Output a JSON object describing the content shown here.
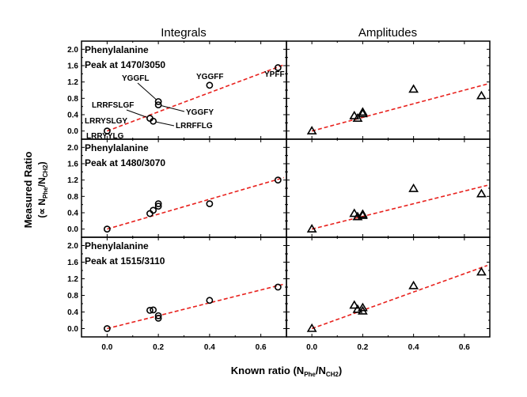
{
  "chart_data": {
    "type": "scatter",
    "layout": "3x2 grid of panels",
    "column_titles": [
      "Integrals",
      "Amplitudes"
    ],
    "xlabel": "Known ratio (N_Phe/N_CH2)",
    "xlabel_parts": {
      "main": "Known ratio (N",
      "sub1": "Phe",
      "mid": "/N",
      "sub2": "CH2",
      "end": ")"
    },
    "ylabel": "Measured Ratio (∝ N_Phe/N_CH2)",
    "ylabel_parts": {
      "line1": "Measured Ratio",
      "prefix": "(∝ N",
      "sub1": "Phe",
      "mid": "/N",
      "sub2": "CH2",
      "end": ")"
    },
    "xlim": [
      -0.1,
      0.7
    ],
    "ylim": [
      -0.2,
      2.2
    ],
    "xticks": [
      0.0,
      0.2,
      0.4,
      0.6
    ],
    "xtick_labels": [
      "0.0",
      "0.2",
      "0.4",
      "0.6"
    ],
    "yticks": [
      0.0,
      0.4,
      0.8,
      1.2,
      1.6,
      2.0
    ],
    "ytick_labels": [
      "0.0",
      "0.4",
      "0.8",
      "1.2",
      "1.6",
      "2.0"
    ],
    "marker_colors": {
      "points": "#000000",
      "fit": "#e8211d"
    },
    "panels": [
      {
        "row": 0,
        "col": 0,
        "marker": "circle",
        "title_lines": [
          "Phenylalanine",
          "Peak at 1470/3050"
        ],
        "points": [
          {
            "x": 0.0,
            "y": 0.0,
            "label": "LRRYYLG"
          },
          {
            "x": 0.167,
            "y": 0.31,
            "label": "LRRFSLGF"
          },
          {
            "x": 0.18,
            "y": 0.24,
            "label": "LRRFFLG"
          },
          {
            "x": 0.2,
            "y": 0.72,
            "label": "YGGFL"
          },
          {
            "x": 0.2,
            "y": 0.64,
            "label": "YGGFY"
          },
          {
            "x": 0.4,
            "y": 1.12,
            "label": "YGGFF"
          },
          {
            "x": 0.667,
            "y": 1.55,
            "label": "YPFF"
          }
        ],
        "extra_labels": [
          "LRRYSLGY"
        ],
        "fit": {
          "x": [
            0.0,
            0.69
          ],
          "y": [
            0.0,
            1.62
          ]
        }
      },
      {
        "row": 0,
        "col": 1,
        "marker": "triangle",
        "title_lines": [],
        "points": [
          {
            "x": 0.0,
            "y": 0.0
          },
          {
            "x": 0.167,
            "y": 0.37
          },
          {
            "x": 0.18,
            "y": 0.31
          },
          {
            "x": 0.2,
            "y": 0.46
          },
          {
            "x": 0.2,
            "y": 0.42
          },
          {
            "x": 0.4,
            "y": 1.02
          },
          {
            "x": 0.667,
            "y": 0.86
          }
        ],
        "fit": {
          "x": [
            0.0,
            0.69
          ],
          "y": [
            0.0,
            1.15
          ]
        }
      },
      {
        "row": 1,
        "col": 0,
        "marker": "circle",
        "title_lines": [
          "Phenylalanine",
          "Peak at 1480/3070"
        ],
        "points": [
          {
            "x": 0.0,
            "y": 0.0
          },
          {
            "x": 0.167,
            "y": 0.38
          },
          {
            "x": 0.18,
            "y": 0.46
          },
          {
            "x": 0.2,
            "y": 0.56
          },
          {
            "x": 0.2,
            "y": 0.62
          },
          {
            "x": 0.4,
            "y": 0.62
          },
          {
            "x": 0.667,
            "y": 1.2
          }
        ],
        "fit": {
          "x": [
            0.0,
            0.69
          ],
          "y": [
            0.0,
            1.26
          ]
        }
      },
      {
        "row": 1,
        "col": 1,
        "marker": "triangle",
        "title_lines": [],
        "points": [
          {
            "x": 0.0,
            "y": 0.0
          },
          {
            "x": 0.167,
            "y": 0.38
          },
          {
            "x": 0.18,
            "y": 0.3
          },
          {
            "x": 0.2,
            "y": 0.33
          },
          {
            "x": 0.2,
            "y": 0.36
          },
          {
            "x": 0.4,
            "y": 0.99
          },
          {
            "x": 0.667,
            "y": 0.86
          }
        ],
        "fit": {
          "x": [
            0.0,
            0.69
          ],
          "y": [
            0.0,
            1.07
          ]
        }
      },
      {
        "row": 2,
        "col": 0,
        "marker": "circle",
        "title_lines": [
          "Phenylalanine",
          "Peak at 1515/3110"
        ],
        "points": [
          {
            "x": 0.0,
            "y": 0.0
          },
          {
            "x": 0.167,
            "y": 0.44
          },
          {
            "x": 0.18,
            "y": 0.45
          },
          {
            "x": 0.2,
            "y": 0.31
          },
          {
            "x": 0.2,
            "y": 0.25
          },
          {
            "x": 0.4,
            "y": 0.68
          },
          {
            "x": 0.667,
            "y": 1.0
          }
        ],
        "fit": {
          "x": [
            0.0,
            0.69
          ],
          "y": [
            0.0,
            1.07
          ]
        }
      },
      {
        "row": 2,
        "col": 1,
        "marker": "triangle",
        "title_lines": [],
        "points": [
          {
            "x": 0.0,
            "y": 0.0
          },
          {
            "x": 0.167,
            "y": 0.56
          },
          {
            "x": 0.18,
            "y": 0.46
          },
          {
            "x": 0.2,
            "y": 0.5
          },
          {
            "x": 0.2,
            "y": 0.42
          },
          {
            "x": 0.4,
            "y": 1.03
          },
          {
            "x": 0.667,
            "y": 1.36
          }
        ],
        "fit": {
          "x": [
            0.0,
            0.69
          ],
          "y": [
            0.0,
            1.52
          ]
        }
      }
    ]
  }
}
